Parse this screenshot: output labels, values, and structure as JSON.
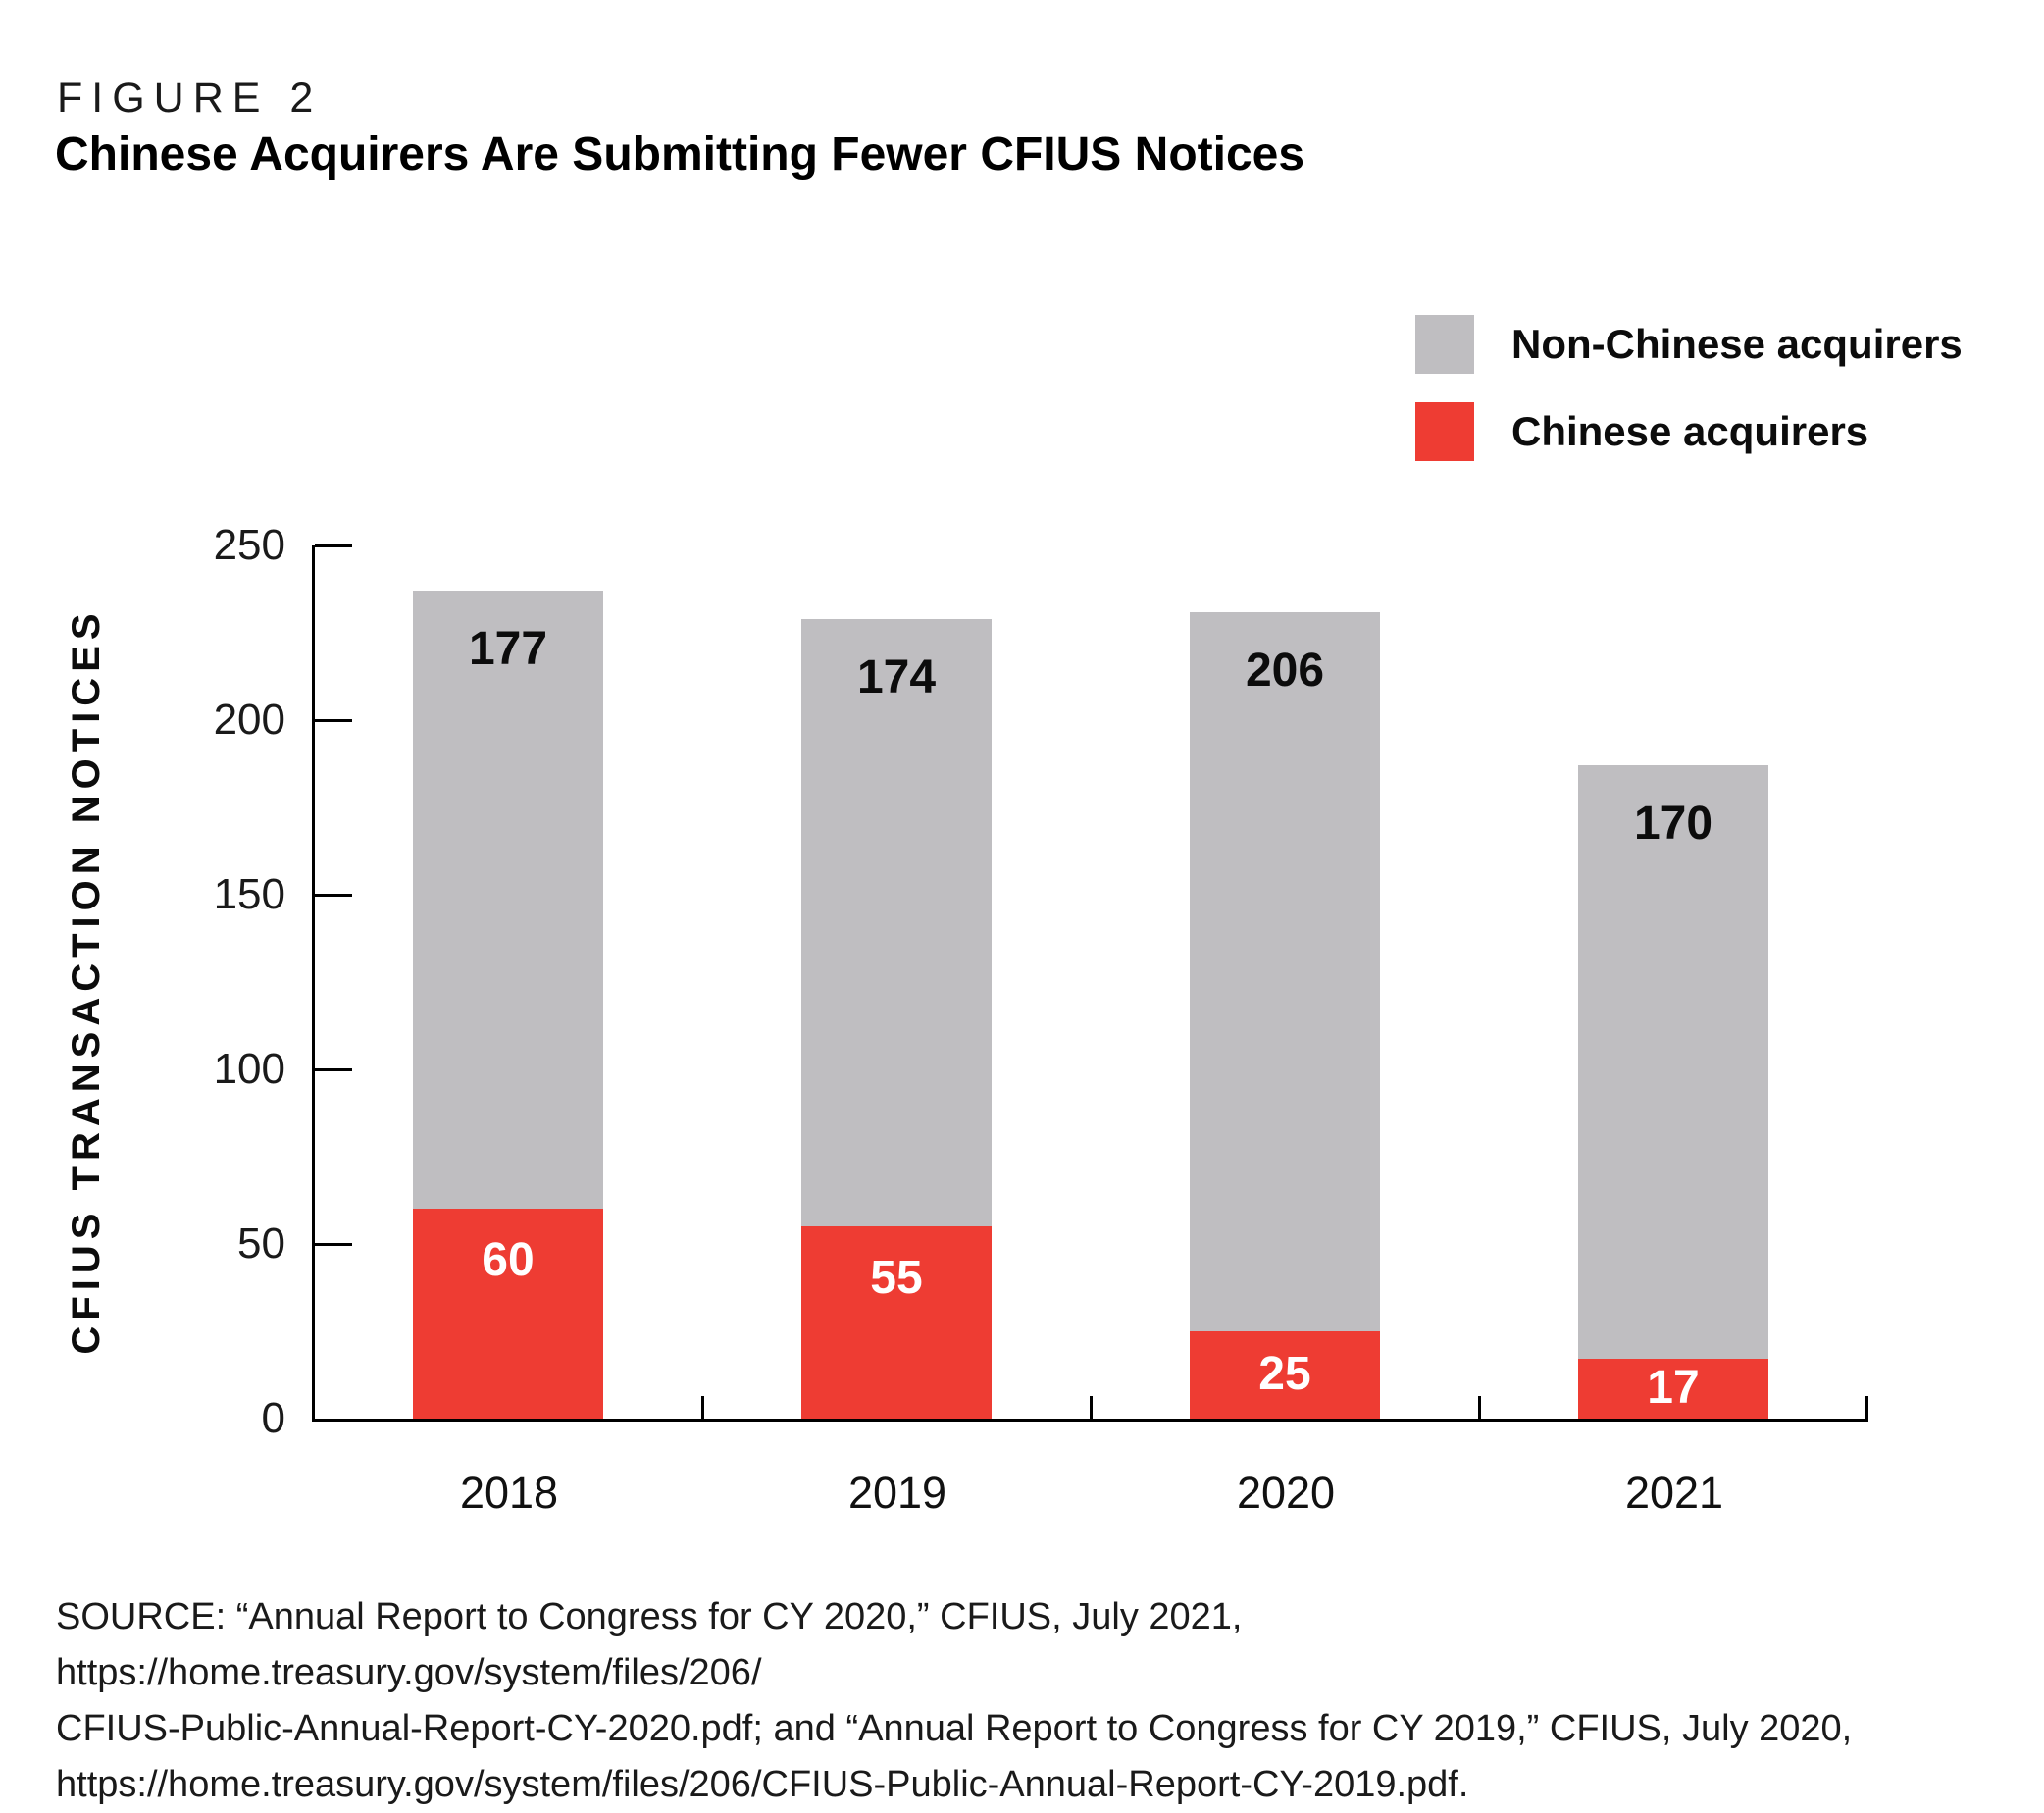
{
  "header": {
    "kicker": "FIGURE 2",
    "title": "Chinese Acquirers Are Submitting Fewer CFIUS Notices"
  },
  "legend": [
    {
      "label": "Non-Chinese acquirers",
      "color": "#bfbec1"
    },
    {
      "label": "Chinese acquirers",
      "color": "#ee3c33"
    }
  ],
  "chart_data": {
    "type": "bar",
    "stacked": true,
    "categories": [
      "2018",
      "2019",
      "2020",
      "2021"
    ],
    "series": [
      {
        "name": "Chinese acquirers",
        "color": "#ee3c33",
        "values": [
          60,
          55,
          25,
          17
        ]
      },
      {
        "name": "Non-Chinese acquirers",
        "color": "#bfbec1",
        "values": [
          177,
          174,
          206,
          170
        ]
      }
    ],
    "totals": [
      237,
      229,
      231,
      187
    ],
    "title": "Chinese Acquirers Are Submitting Fewer CFIUS Notices",
    "xlabel": "",
    "ylabel": "CFIUS TRANSACTION NOTICES",
    "ylim": [
      0,
      250
    ],
    "yticks": [
      0,
      50,
      100,
      150,
      200,
      250
    ],
    "grid": false,
    "legend_position": "top-right",
    "value_labels": true
  },
  "source": {
    "text": "SOURCE: “Annual Report to Congress for CY 2020,” CFIUS, July 2021, https://home.treasury.gov/system/files/206/\nCFIUS-Public-Annual-Report-CY-2020.pdf; and “Annual Report to Congress for CY 2019,” CFIUS, July 2020,\nhttps://home.treasury.gov/system/files/206/CFIUS-Public-Annual-Report-CY-2019.pdf."
  }
}
